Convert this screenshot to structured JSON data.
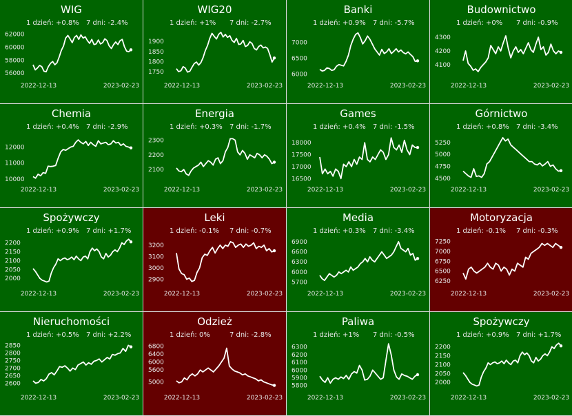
{
  "colors": {
    "up": "#006400",
    "down": "#640000",
    "line": "#ffffff"
  },
  "chart_data": [
    {
      "type": "line",
      "title": "WIG",
      "day_change": "1 dzień: +0.8%",
      "week_change": "7 dni: -2.4%",
      "direction": "up",
      "x_start": "2022-12-13",
      "x_end": "2023-02-23",
      "yticks": [
        {
          "value": 56000,
          "label": "56000"
        },
        {
          "value": 58000,
          "label": "58000"
        },
        {
          "value": 60000,
          "label": "60000"
        },
        {
          "value": 62000,
          "label": "62000"
        }
      ],
      "ylim": [
        55600,
        62600
      ],
      "values": [
        57300,
        56500,
        56800,
        57200,
        57000,
        56300,
        56200,
        57000,
        57500,
        57800,
        57300,
        57600,
        58500,
        59500,
        60200,
        61400,
        61800,
        61300,
        60700,
        61500,
        61800,
        61200,
        61900,
        61400,
        61600,
        61000,
        60600,
        61200,
        60400,
        60500,
        61100,
        60500,
        60700,
        61300,
        61000,
        60200,
        59800,
        60400,
        60800,
        60400,
        61000,
        61200,
        60100,
        59400,
        59300,
        59600
      ]
    },
    {
      "type": "line",
      "title": "WIG20",
      "day_change": "1 dzień: +1%",
      "week_change": "7 dni: -2.7%",
      "direction": "up",
      "x_start": "2022-12-13",
      "x_end": "2023-02-23",
      "yticks": [
        {
          "value": 1750,
          "label": "1750"
        },
        {
          "value": 1800,
          "label": "1800"
        },
        {
          "value": 1850,
          "label": "1850"
        },
        {
          "value": 1900,
          "label": "1900"
        }
      ],
      "ylim": [
        1730,
        1955
      ],
      "values": [
        1765,
        1750,
        1755,
        1775,
        1768,
        1748,
        1752,
        1772,
        1790,
        1798,
        1783,
        1795,
        1820,
        1855,
        1880,
        1915,
        1940,
        1925,
        1912,
        1935,
        1945,
        1922,
        1935,
        1920,
        1928,
        1905,
        1895,
        1915,
        1885,
        1888,
        1905,
        1875,
        1880,
        1898,
        1890,
        1865,
        1858,
        1875,
        1882,
        1868,
        1872,
        1865,
        1835,
        1798,
        1818
      ]
    },
    {
      "type": "line",
      "title": "Banki",
      "day_change": "1 dzień: +0.9%",
      "week_change": "7 dni: -5.7%",
      "direction": "up",
      "x_start": "2022-12-13",
      "x_end": "2023-02-23",
      "yticks": [
        {
          "value": 6000,
          "label": "6000"
        },
        {
          "value": 6500,
          "label": "6500"
        },
        {
          "value": 7000,
          "label": "7000"
        }
      ],
      "ylim": [
        5950,
        7380
      ],
      "values": [
        6150,
        6100,
        6120,
        6200,
        6180,
        6120,
        6140,
        6250,
        6300,
        6280,
        6260,
        6400,
        6600,
        6900,
        7100,
        7250,
        7300,
        7150,
        6950,
        7050,
        7200,
        7100,
        6950,
        6800,
        6700,
        6600,
        6780,
        6650,
        6700,
        6800,
        6650,
        6720,
        6800,
        6700,
        6760,
        6680,
        6640,
        6700,
        6620,
        6550,
        6400,
        6420
      ]
    },
    {
      "type": "line",
      "title": "Budownictwo",
      "day_change": "1 dzień: +0%",
      "week_change": "7 dni: -0.9%",
      "direction": "up",
      "x_start": "2022-12-13",
      "x_end": "2023-02-23",
      "yticks": [
        {
          "value": 4100,
          "label": "4100"
        },
        {
          "value": 4200,
          "label": "4200"
        },
        {
          "value": 4300,
          "label": "4300"
        }
      ],
      "ylim": [
        4020,
        4350
      ],
      "values": [
        4130,
        4200,
        4110,
        4090,
        4060,
        4070,
        4050,
        4080,
        4100,
        4120,
        4150,
        4240,
        4210,
        4180,
        4230,
        4200,
        4260,
        4310,
        4220,
        4150,
        4200,
        4230,
        4190,
        4210,
        4180,
        4220,
        4260,
        4210,
        4190,
        4250,
        4300,
        4210,
        4230,
        4170,
        4190,
        4250,
        4200,
        4180,
        4200,
        4190
      ]
    },
    {
      "type": "line",
      "title": "Chemia",
      "day_change": "1 dzień: +0.4%",
      "week_change": "7 dni: -2.9%",
      "direction": "up",
      "x_start": "2022-12-13",
      "x_end": "2023-02-23",
      "yticks": [
        {
          "value": 10000,
          "label": "10000"
        },
        {
          "value": 11000,
          "label": "11000"
        },
        {
          "value": 12000,
          "label": "12000"
        }
      ],
      "ylim": [
        9950,
        12800
      ],
      "values": [
        10150,
        10050,
        10300,
        10200,
        10400,
        10350,
        10800,
        10780,
        10800,
        10850,
        11300,
        11700,
        11850,
        11800,
        11900,
        12000,
        12050,
        12300,
        12450,
        12300,
        12200,
        12350,
        12100,
        12300,
        12150,
        12050,
        12400,
        12200,
        12250,
        12300,
        12150,
        12200,
        12400,
        12250,
        12300,
        12100,
        12200,
        12050,
        12000,
        11950
      ]
    },
    {
      "type": "line",
      "title": "Energia",
      "day_change": "1 dzień: +0.3%",
      "week_change": "7 dni: -1.7%",
      "direction": "up",
      "x_start": "2022-12-13",
      "x_end": "2023-02-23",
      "yticks": [
        {
          "value": 2100,
          "label": "2100"
        },
        {
          "value": 2200,
          "label": "2200"
        },
        {
          "value": 2300,
          "label": "2300"
        }
      ],
      "ylim": [
        2030,
        2340
      ],
      "values": [
        2110,
        2090,
        2085,
        2100,
        2070,
        2060,
        2090,
        2110,
        2120,
        2130,
        2150,
        2120,
        2140,
        2160,
        2150,
        2130,
        2170,
        2180,
        2140,
        2160,
        2220,
        2250,
        2310,
        2310,
        2300,
        2220,
        2200,
        2230,
        2210,
        2170,
        2200,
        2190,
        2180,
        2210,
        2200,
        2180,
        2200,
        2190,
        2170,
        2140,
        2150
      ]
    },
    {
      "type": "line",
      "title": "Games",
      "day_change": "1 dzień: +0.4%",
      "week_change": "7 dni: -1.5%",
      "direction": "up",
      "x_start": "2022-12-13",
      "x_end": "2023-02-23",
      "yticks": [
        {
          "value": 16500,
          "label": "16500"
        },
        {
          "value": 17000,
          "label": "17000"
        },
        {
          "value": 17500,
          "label": "17500"
        },
        {
          "value": 18000,
          "label": "18000"
        }
      ],
      "ylim": [
        16450,
        18350
      ],
      "values": [
        17400,
        16700,
        16900,
        16700,
        16800,
        16600,
        16900,
        16800,
        16500,
        17100,
        17000,
        17200,
        17000,
        17300,
        17100,
        17400,
        17300,
        18000,
        17300,
        17200,
        17400,
        17300,
        17500,
        17700,
        17600,
        17300,
        17500,
        18200,
        17800,
        17700,
        17900,
        17600,
        18100,
        17700,
        17500,
        17900,
        17800,
        17800
      ]
    },
    {
      "type": "line",
      "title": "Górnictwo",
      "day_change": "1 dzień: +0.8%",
      "week_change": "7 dni: -3.4%",
      "direction": "up",
      "x_start": "2022-12-13",
      "x_end": "2023-02-23",
      "yticks": [
        {
          "value": 4500,
          "label": "4500"
        },
        {
          "value": 4750,
          "label": "4750"
        },
        {
          "value": 5000,
          "label": "5000"
        },
        {
          "value": 5250,
          "label": "5250"
        }
      ],
      "ylim": [
        4470,
        5420
      ],
      "values": [
        4650,
        4600,
        4550,
        4520,
        4700,
        4540,
        4550,
        4520,
        4600,
        4800,
        4850,
        4950,
        5050,
        5150,
        5250,
        5350,
        5280,
        5320,
        5200,
        5150,
        5100,
        5050,
        5000,
        4950,
        4900,
        4850,
        4850,
        4800,
        4780,
        4820,
        4760,
        4800,
        4850,
        4750,
        4780,
        4700,
        4650,
        4660
      ]
    },
    {
      "type": "line",
      "title": "Spożywczy",
      "day_change": "1 dzień: +0.9%",
      "week_change": "7 dni: +1.7%",
      "direction": "up",
      "x_start": "2022-12-13",
      "x_end": "2023-02-23",
      "yticks": [
        {
          "value": 2000,
          "label": "2000"
        },
        {
          "value": 2050,
          "label": "2050"
        },
        {
          "value": 2100,
          "label": "2100"
        },
        {
          "value": 2150,
          "label": "2150"
        },
        {
          "value": 2200,
          "label": "2200"
        }
      ],
      "ylim": [
        1970,
        2225
      ],
      "values": [
        2055,
        2040,
        2020,
        2000,
        1990,
        1985,
        1980,
        1985,
        2030,
        2060,
        2080,
        2110,
        2100,
        2110,
        2115,
        2105,
        2110,
        2120,
        2105,
        2125,
        2110,
        2100,
        2120,
        2125,
        2110,
        2150,
        2170,
        2155,
        2165,
        2150,
        2120,
        2110,
        2140,
        2120,
        2130,
        2150,
        2160,
        2150,
        2170,
        2200,
        2190,
        2210,
        2220,
        2205
      ]
    },
    {
      "type": "line",
      "title": "Leki",
      "day_change": "1 dzień: -0.1%",
      "week_change": "7 dni: -0.7%",
      "direction": "down",
      "x_start": "2022-12-13",
      "x_end": "2023-02-23",
      "yticks": [
        {
          "value": 2900,
          "label": "2900"
        },
        {
          "value": 3000,
          "label": "3000"
        },
        {
          "value": 3100,
          "label": "3100"
        },
        {
          "value": 3200,
          "label": "3200"
        }
      ],
      "ylim": [
        2860,
        3260
      ],
      "values": [
        3130,
        2990,
        2950,
        2940,
        2900,
        2910,
        2880,
        2890,
        2960,
        3000,
        3090,
        3120,
        3110,
        3150,
        3180,
        3130,
        3170,
        3200,
        3170,
        3200,
        3190,
        3230,
        3220,
        3180,
        3200,
        3210,
        3180,
        3210,
        3190,
        3200,
        3220,
        3170,
        3190,
        3180,
        3200,
        3150,
        3170,
        3140,
        3150
      ]
    },
    {
      "type": "line",
      "title": "Media",
      "day_change": "1 dzień: +0.3%",
      "week_change": "7 dni: -3.4%",
      "direction": "up",
      "x_start": "2022-12-13",
      "x_end": "2023-02-23",
      "yticks": [
        {
          "value": 5700,
          "label": "5700"
        },
        {
          "value": 6000,
          "label": "6000"
        },
        {
          "value": 6300,
          "label": "6300"
        },
        {
          "value": 6600,
          "label": "6600"
        },
        {
          "value": 6900,
          "label": "6900"
        }
      ],
      "ylim": [
        5650,
        7000
      ],
      "values": [
        5900,
        5800,
        5750,
        5850,
        5950,
        5900,
        5850,
        5900,
        6000,
        5950,
        6000,
        6050,
        6000,
        6150,
        6050,
        6100,
        6150,
        6250,
        6300,
        6400,
        6300,
        6450,
        6350,
        6300,
        6400,
        6500,
        6600,
        6500,
        6400,
        6450,
        6500,
        6600,
        6750,
        6900,
        6700,
        6650,
        6600,
        6700,
        6500,
        6550,
        6350,
        6400
      ]
    },
    {
      "type": "line",
      "title": "Motoryzacja",
      "day_change": "1 dzień: -0.1%",
      "week_change": "7 dni: -0.3%",
      "direction": "down",
      "x_start": "2022-12-13",
      "x_end": "2023-02-23",
      "yticks": [
        {
          "value": 6250,
          "label": "6250"
        },
        {
          "value": 6500,
          "label": "6500"
        },
        {
          "value": 6750,
          "label": "6750"
        },
        {
          "value": 7000,
          "label": "7000"
        },
        {
          "value": 7250,
          "label": "7250"
        }
      ],
      "ylim": [
        6180,
        7330
      ],
      "values": [
        6450,
        6300,
        6550,
        6600,
        6500,
        6450,
        6500,
        6550,
        6600,
        6700,
        6600,
        6550,
        6700,
        6650,
        6500,
        6600,
        6550,
        6400,
        6550,
        6500,
        6700,
        6650,
        6600,
        6850,
        6800,
        6950,
        7000,
        7050,
        7100,
        7200,
        7150,
        7200,
        7150,
        7100,
        7200,
        7150,
        7100
      ]
    },
    {
      "type": "line",
      "title": "Nieruchomości",
      "day_change": "1 dzień: +0.5%",
      "week_change": "7 dni: +2.2%",
      "direction": "up",
      "x_start": "2022-12-13",
      "x_end": "2023-02-23",
      "yticks": [
        {
          "value": 2600,
          "label": "2600"
        },
        {
          "value": 2650,
          "label": "2650"
        },
        {
          "value": 2700,
          "label": "2700"
        },
        {
          "value": 2750,
          "label": "2750"
        },
        {
          "value": 2800,
          "label": "2800"
        },
        {
          "value": 2850,
          "label": "2850"
        }
      ],
      "ylim": [
        2570,
        2870
      ],
      "values": [
        2615,
        2600,
        2605,
        2625,
        2615,
        2630,
        2660,
        2670,
        2655,
        2680,
        2710,
        2705,
        2715,
        2700,
        2680,
        2700,
        2690,
        2720,
        2730,
        2740,
        2720,
        2735,
        2725,
        2745,
        2750,
        2760,
        2740,
        2755,
        2770,
        2760,
        2790,
        2785,
        2795,
        2800,
        2830,
        2810,
        2850,
        2840
      ]
    },
    {
      "type": "line",
      "title": "Odzież",
      "day_change": "1 dzień: 0%",
      "week_change": "7 dni: -2.8%",
      "direction": "down",
      "x_start": "2022-12-13",
      "x_end": "2023-02-23",
      "yticks": [
        {
          "value": 5000,
          "label": "5000"
        },
        {
          "value": 5600,
          "label": "5600"
        },
        {
          "value": 6000,
          "label": "6000"
        },
        {
          "value": 6400,
          "label": "6400"
        },
        {
          "value": 6800,
          "label": "6800"
        }
      ],
      "ylim": [
        4700,
        7000
      ],
      "values": [
        5050,
        4950,
        5000,
        5200,
        5100,
        5300,
        5400,
        5300,
        5400,
        5600,
        5500,
        5600,
        5700,
        5600,
        5500,
        5650,
        5800,
        6000,
        6200,
        6700,
        5800,
        5650,
        5550,
        5500,
        5450,
        5350,
        5400,
        5300,
        5250,
        5200,
        5150,
        5050,
        5100,
        5000,
        4950,
        4900,
        4850,
        4820
      ]
    },
    {
      "type": "line",
      "title": "Paliwa",
      "day_change": "1 dzień: +1%",
      "week_change": "7 dni: -0.5%",
      "direction": "up",
      "x_start": "2022-12-13",
      "x_end": "2023-02-23",
      "yticks": [
        {
          "value": 5800,
          "label": "5800"
        },
        {
          "value": 5900,
          "label": "5900"
        },
        {
          "value": 6000,
          "label": "6000"
        },
        {
          "value": 6100,
          "label": "6100"
        },
        {
          "value": 6200,
          "label": "6200"
        },
        {
          "value": 6300,
          "label": "6300"
        }
      ],
      "ylim": [
        5770,
        6360
      ],
      "values": [
        5920,
        5870,
        5840,
        5900,
        5830,
        5880,
        5900,
        5880,
        5910,
        5890,
        5930,
        5880,
        5950,
        5980,
        5960,
        6060,
        6000,
        5870,
        5880,
        5920,
        6000,
        5960,
        5920,
        5880,
        5900,
        6120,
        6340,
        6200,
        6000,
        5910,
        5880,
        5950,
        5930,
        5920,
        5900,
        5880,
        5920,
        5940
      ]
    },
    {
      "type": "line",
      "title": "Spożywczy",
      "day_change": "1 dzień: +0.9%",
      "week_change": "7 dni: +1.7%",
      "direction": "up",
      "x_start": "2022-12-13",
      "x_end": "2023-02-23",
      "yticks": [
        {
          "value": 2000,
          "label": "2000"
        },
        {
          "value": 2050,
          "label": "2050"
        },
        {
          "value": 2100,
          "label": "2100"
        },
        {
          "value": 2150,
          "label": "2150"
        },
        {
          "value": 2200,
          "label": "2200"
        }
      ],
      "ylim": [
        1970,
        2225
      ],
      "values": [
        2055,
        2040,
        2020,
        2000,
        1990,
        1985,
        1980,
        1985,
        2030,
        2060,
        2080,
        2110,
        2100,
        2110,
        2115,
        2105,
        2110,
        2120,
        2105,
        2125,
        2110,
        2100,
        2120,
        2125,
        2110,
        2150,
        2170,
        2155,
        2165,
        2150,
        2120,
        2110,
        2140,
        2120,
        2130,
        2150,
        2160,
        2150,
        2170,
        2200,
        2190,
        2210,
        2220,
        2205
      ]
    }
  ]
}
